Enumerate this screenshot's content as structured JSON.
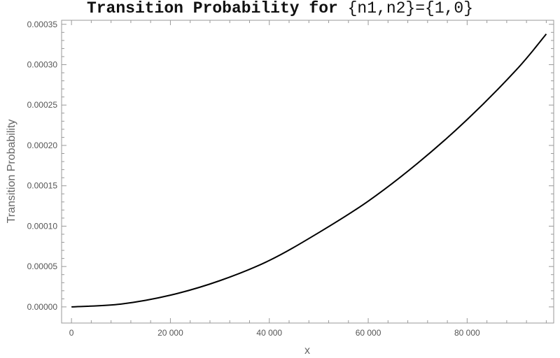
{
  "chart_data": {
    "type": "line",
    "title": "Transition Probability for {n1,n2}={1,0}",
    "title_main": "Transition Probability for ",
    "title_set": "{n1,n2}={1,0}",
    "xlabel": "x",
    "ylabel": "Transition Probability",
    "xlim": [
      -2000,
      97500
    ],
    "ylim": [
      -2e-05,
      0.000355
    ],
    "x_ticks": [
      0,
      20000,
      40000,
      60000,
      80000
    ],
    "x_tick_labels": [
      "0",
      "20 000",
      "40 000",
      "60 000",
      "80 000"
    ],
    "y_ticks": [
      0.0,
      5e-05,
      0.0001,
      0.00015,
      0.0002,
      0.00025,
      0.0003,
      0.00035
    ],
    "y_tick_labels": [
      "0.00000",
      "0.00005",
      "0.00010",
      "0.00015",
      "0.00020",
      "0.00025",
      "0.00030",
      "0.00035"
    ],
    "grid": false,
    "frame": true,
    "line_color": "#000000",
    "series": [
      {
        "x": [
          0,
          10000,
          20000,
          30000,
          40000,
          50000,
          60000,
          70000,
          80000,
          90000,
          96000
        ],
        "y": [
          0.0,
          3.5e-06,
          1.45e-05,
          3.25e-05,
          5.75e-05,
          9.2e-05,
          0.000131,
          0.000178,
          0.000232,
          0.000294,
          0.000338
        ]
      }
    ]
  }
}
